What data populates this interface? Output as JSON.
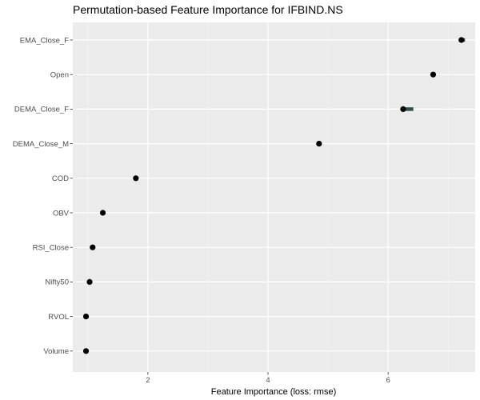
{
  "chart_data": {
    "type": "scatter",
    "title": "Permutation-based Feature Importance for IFBIND.NS",
    "xlabel": "Feature Importance (loss: rmse)",
    "ylabel": "",
    "xlim": [
      0.75,
      7.45
    ],
    "x_ticks": [
      2,
      4,
      6
    ],
    "grid": true,
    "features": [
      "EMA_Close_F",
      "Open",
      "DEMA_Close_F",
      "DEMA_Close_M",
      "COD",
      "OBV",
      "RSI_Close",
      "Nifty50",
      "RVOL",
      "Volume"
    ],
    "importance": [
      7.22,
      6.75,
      6.25,
      4.85,
      1.8,
      1.25,
      1.08,
      1.03,
      0.97,
      0.97
    ],
    "interval_low": [
      7.18,
      6.75,
      6.22,
      4.85,
      1.8,
      1.25,
      1.08,
      1.03,
      0.97,
      0.97
    ],
    "interval_high": [
      7.28,
      6.75,
      6.42,
      4.85,
      1.8,
      1.25,
      1.08,
      1.03,
      0.97,
      0.97
    ],
    "colors": {
      "panel": "#ebebeb",
      "grid_major": "#ffffff",
      "grid_minor": "#f5f5f5",
      "point": "#000000",
      "interval": "#2f4f4f",
      "tick_text": "#4d4d4d"
    }
  }
}
